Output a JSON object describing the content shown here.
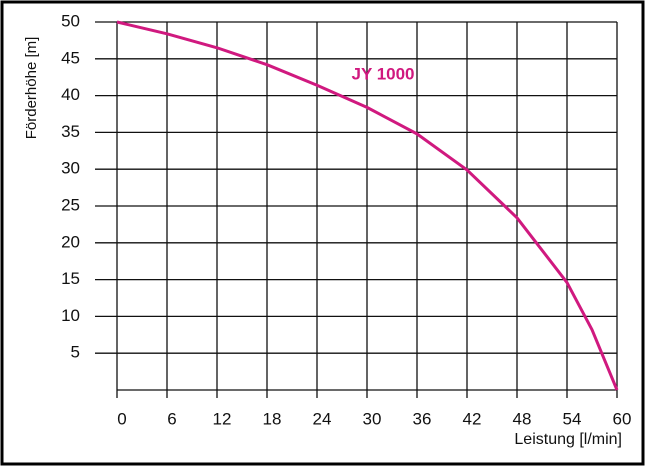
{
  "chart_data": {
    "type": "line",
    "x_label": "Leistung  [l/min]",
    "y_label": "Förderhöhe [m]",
    "x": [
      0,
      6,
      12,
      18,
      24,
      30,
      36,
      42,
      48,
      54,
      57,
      60
    ],
    "series": [
      {
        "name": "JY 1000",
        "color": "#d0197f",
        "values": [
          50,
          48.4,
          46.5,
          44.2,
          41.4,
          38.4,
          34.8,
          29.9,
          23.4,
          14.6,
          8.2,
          0
        ]
      }
    ],
    "xlim": [
      0,
      60
    ],
    "ylim": [
      0,
      50
    ],
    "xticks": [
      0,
      6,
      12,
      18,
      24,
      30,
      36,
      42,
      48,
      54,
      60
    ],
    "yticks": [
      5,
      10,
      15,
      20,
      25,
      30,
      35,
      40,
      45,
      50
    ],
    "grid": true
  }
}
